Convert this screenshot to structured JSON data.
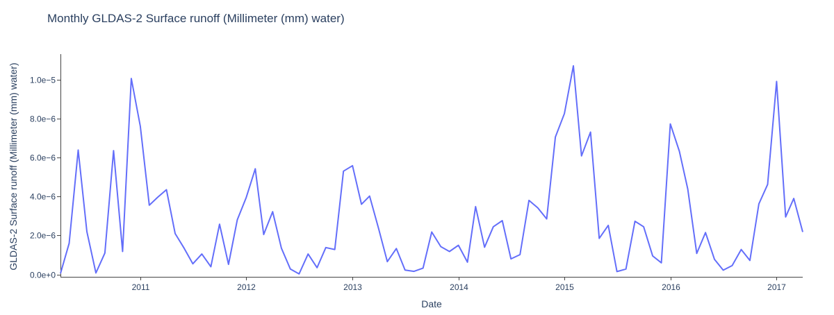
{
  "chart_data": {
    "type": "line",
    "title": "Monthly GLDAS-2 Surface runoff (Millimeter (mm) water)",
    "xlabel": "Date",
    "ylabel": "GLDAS-2 Surface runoff (Millimeter (mm) water)",
    "x_ticks": [
      "2011",
      "2012",
      "2013",
      "2014",
      "2015",
      "2016",
      "2017"
    ],
    "y_ticks": [
      "0.0e+0",
      "2.0e−6",
      "4.0e−6",
      "6.0e−6",
      "8.0e−6",
      "1.0e−5"
    ],
    "y_tick_values": [
      0,
      2e-06,
      4e-06,
      6e-06,
      8e-06,
      1e-05
    ],
    "xlim": [
      "2010-04-01",
      "2017-04-01"
    ],
    "ylim": [
      -1.2e-07,
      1.13e-05
    ],
    "grid": false,
    "series": [
      {
        "color": "#636efa",
        "x": [
          "2010-04-01",
          "2010-05-01",
          "2010-06-01",
          "2010-07-01",
          "2010-08-01",
          "2010-09-01",
          "2010-10-01",
          "2010-11-01",
          "2010-12-01",
          "2011-01-01",
          "2011-02-01",
          "2011-03-01",
          "2011-04-01",
          "2011-05-01",
          "2011-06-01",
          "2011-07-01",
          "2011-08-01",
          "2011-09-01",
          "2011-10-01",
          "2011-11-01",
          "2011-12-01",
          "2012-01-01",
          "2012-02-01",
          "2012-03-01",
          "2012-04-01",
          "2012-05-01",
          "2012-06-01",
          "2012-07-01",
          "2012-08-01",
          "2012-09-01",
          "2012-10-01",
          "2012-11-01",
          "2012-12-01",
          "2013-01-01",
          "2013-02-01",
          "2013-03-01",
          "2013-04-01",
          "2013-05-01",
          "2013-06-01",
          "2013-07-01",
          "2013-08-01",
          "2013-09-01",
          "2013-10-01",
          "2013-11-01",
          "2013-12-01",
          "2014-01-01",
          "2014-02-01",
          "2014-03-01",
          "2014-04-01",
          "2014-05-01",
          "2014-06-01",
          "2014-07-01",
          "2014-08-01",
          "2014-09-01",
          "2014-10-01",
          "2014-11-01",
          "2014-12-01",
          "2015-01-01",
          "2015-02-01",
          "2015-03-01",
          "2015-04-01",
          "2015-05-01",
          "2015-06-01",
          "2015-07-01",
          "2015-08-01",
          "2015-09-01",
          "2015-10-01",
          "2015-11-01",
          "2015-12-01",
          "2016-01-01",
          "2016-02-01",
          "2016-03-01",
          "2016-04-01",
          "2016-05-01",
          "2016-06-01",
          "2016-07-01",
          "2016-08-01",
          "2016-09-01",
          "2016-10-01",
          "2016-11-01",
          "2016-12-01",
          "2017-01-01",
          "2017-02-01",
          "2017-03-01",
          "2017-04-01"
        ],
        "y": [
          5e-08,
          1.6e-06,
          6.38e-06,
          2.2e-06,
          8e-08,
          1.1e-06,
          6.35e-06,
          1.18e-06,
          1.005e-05,
          7.6e-06,
          3.55e-06,
          3.95e-06,
          4.35e-06,
          2.1e-06,
          1.35e-06,
          5.5e-07,
          1.05e-06,
          4e-07,
          2.58e-06,
          5.2e-07,
          2.8e-06,
          3.95e-06,
          5.42e-06,
          2.05e-06,
          3.22e-06,
          1.35e-06,
          2.8e-07,
          3e-08,
          1.05e-06,
          3.5e-07,
          1.38e-06,
          1.28e-06,
          5.3e-06,
          5.58e-06,
          3.6e-06,
          4.02e-06,
          2.35e-06,
          6.6e-07,
          1.33e-06,
          2.3e-07,
          1.6e-07,
          3.3e-07,
          2.18e-06,
          1.43e-06,
          1.18e-06,
          1.5e-06,
          6.3e-07,
          3.48e-06,
          1.4e-06,
          2.45e-06,
          2.76e-06,
          8e-07,
          1.02e-06,
          3.8e-06,
          3.42e-06,
          2.85e-06,
          7.05e-06,
          8.25e-06,
          1.07e-05,
          6.08e-06,
          7.3e-06,
          1.85e-06,
          2.52e-06,
          1.5e-07,
          2.8e-07,
          2.73e-06,
          2.45e-06,
          9.5e-07,
          6e-07,
          7.72e-06,
          6.32e-06,
          4.38e-06,
          1.08e-06,
          2.15e-06,
          7.8e-07,
          2.2e-07,
          4.6e-07,
          1.28e-06,
          7.2e-07,
          3.62e-06,
          4.62e-06,
          9.9e-06,
          2.95e-06,
          3.9e-06,
          2.18e-06
        ]
      }
    ]
  }
}
